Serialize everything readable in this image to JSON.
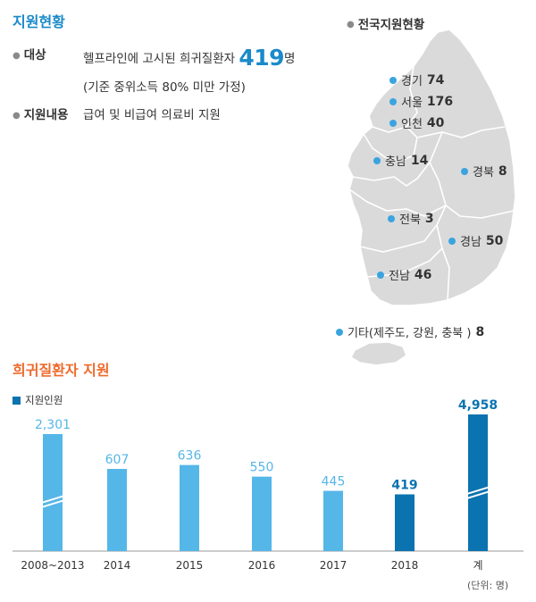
{
  "support_status": {
    "title": "지원현황",
    "target_label": "대상",
    "target_text_prefix": "헬프라인에 고시된 희귀질환자",
    "target_count": "419",
    "target_count_unit": "명",
    "target_note": "(기준 중위소득 80% 미만 가정)",
    "content_label": "지원내용",
    "content_text": "급여 및 비급여 의료비 지원"
  },
  "map": {
    "title": "전국지원현황",
    "regions": [
      {
        "name": "경기",
        "value": "74"
      },
      {
        "name": "서울",
        "value": "176"
      },
      {
        "name": "인천",
        "value": "40"
      },
      {
        "name": "충남",
        "value": "14"
      },
      {
        "name": "경북",
        "value": "8"
      },
      {
        "name": "전북",
        "value": "3"
      },
      {
        "name": "경남",
        "value": "50"
      },
      {
        "name": "전남",
        "value": "46"
      },
      {
        "name": "기타(제주도, 강원, 충북 )",
        "value": "8"
      }
    ]
  },
  "chart_section": {
    "title": "희귀질환자 지원",
    "legend": "지원인원",
    "unit": "(단위: 명)"
  },
  "colors": {
    "light_bar": "#55b6e8",
    "dark_bar": "#0a73b0",
    "accent_blue": "#1a8ac9",
    "accent_orange": "#ee6a2c",
    "map_fill": "#dadada"
  },
  "chart_data": {
    "type": "bar",
    "categories": [
      "2008~2013",
      "2014",
      "2015",
      "2016",
      "2017",
      "2018",
      "계"
    ],
    "values": [
      2301,
      607,
      636,
      550,
      445,
      419,
      4958
    ],
    "value_labels": [
      "2,301",
      "607",
      "636",
      "550",
      "445",
      "419",
      "4,958"
    ],
    "highlight": [
      false,
      false,
      false,
      false,
      false,
      true,
      true
    ],
    "axis_break": [
      true,
      false,
      false,
      false,
      false,
      false,
      true
    ],
    "series": [
      {
        "name": "지원인원",
        "values": [
          2301,
          607,
          636,
          550,
          445,
          419,
          4958
        ]
      }
    ],
    "grid": false,
    "legend_position": "top-left"
  }
}
